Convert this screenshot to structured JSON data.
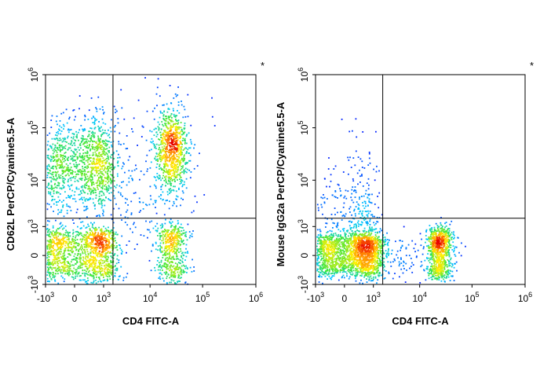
{
  "chart_data": [
    {
      "type": "scatter",
      "subtype": "flow-cytometry-density-dot-plot",
      "xlabel": "CD4 FITC-A",
      "ylabel": "CD62L PerCP/Cyanine5.5-A",
      "marker": "*",
      "x_scale": "biexponential",
      "y_scale": "biexponential",
      "xlim": [
        -1000,
        1000000
      ],
      "ylim": [
        -1000,
        1000000
      ],
      "x_ticks": [
        {
          "base": "-10",
          "exp": "3",
          "value": -1000
        },
        {
          "base": "0",
          "exp": "",
          "value": 0
        },
        {
          "base": "10",
          "exp": "3",
          "value": 1000
        },
        {
          "base": "10",
          "exp": "4",
          "value": 10000
        },
        {
          "base": "10",
          "exp": "5",
          "value": 100000
        },
        {
          "base": "10",
          "exp": "6",
          "value": 1000000
        }
      ],
      "y_ticks": [
        {
          "base": "-10",
          "exp": "3",
          "value": -1000
        },
        {
          "base": "0",
          "exp": "",
          "value": 0
        },
        {
          "base": "10",
          "exp": "3",
          "value": 1000
        },
        {
          "base": "10",
          "exp": "4",
          "value": 10000
        },
        {
          "base": "10",
          "exp": "5",
          "value": 100000
        },
        {
          "base": "10",
          "exp": "6",
          "value": 1000000
        }
      ],
      "gate": {
        "x": 1700,
        "y": 1600
      },
      "populations": [
        {
          "center": [
            150,
            100
          ],
          "spread": [
            900,
            400
          ],
          "count": 1500
        },
        {
          "center": [
            150,
            20000
          ],
          "spread": [
            800,
            0.45
          ],
          "count": 1300
        },
        {
          "center": [
            25000,
            40000
          ],
          "spread": [
            0.16,
            0.4
          ],
          "count": 850
        },
        {
          "center": [
            25000,
            150
          ],
          "spread": [
            0.16,
            500
          ],
          "count": 520
        },
        {
          "center": [
            5000,
            8000
          ],
          "spread": [
            0.6,
            0.8
          ],
          "count": 220
        }
      ]
    },
    {
      "type": "scatter",
      "subtype": "flow-cytometry-density-dot-plot",
      "xlabel": "CD4 FITC-A",
      "ylabel": "Mouse IgG2a PerCP/Cyanine5.5-A",
      "marker": "*",
      "x_scale": "biexponential",
      "y_scale": "biexponential",
      "xlim": [
        -1000,
        1000000
      ],
      "ylim": [
        -1000,
        1000000
      ],
      "x_ticks": [
        {
          "base": "-10",
          "exp": "3",
          "value": -1000
        },
        {
          "base": "0",
          "exp": "",
          "value": 0
        },
        {
          "base": "10",
          "exp": "3",
          "value": 1000
        },
        {
          "base": "10",
          "exp": "4",
          "value": 10000
        },
        {
          "base": "10",
          "exp": "5",
          "value": 100000
        },
        {
          "base": "10",
          "exp": "6",
          "value": 1000000
        }
      ],
      "y_ticks": [
        {
          "base": "-10",
          "exp": "3",
          "value": -1000
        },
        {
          "base": "0",
          "exp": "",
          "value": 0
        },
        {
          "base": "10",
          "exp": "3",
          "value": 1000
        },
        {
          "base": "10",
          "exp": "4",
          "value": 10000
        },
        {
          "base": "10",
          "exp": "5",
          "value": 100000
        },
        {
          "base": "10",
          "exp": "6",
          "value": 1000000
        }
      ],
      "gate": {
        "x": 1700,
        "y": 1600
      },
      "populations": [
        {
          "center": [
            150,
            50
          ],
          "spread": [
            700,
            300
          ],
          "count": 1900
        },
        {
          "center": [
            300,
            1500
          ],
          "spread": [
            500,
            0.7
          ],
          "count": 380
        },
        {
          "center": [
            24000,
            120
          ],
          "spread": [
            0.12,
            400
          ],
          "count": 850
        },
        {
          "center": [
            4000,
            0
          ],
          "spread": [
            0.5,
            300
          ],
          "count": 130
        }
      ]
    }
  ]
}
